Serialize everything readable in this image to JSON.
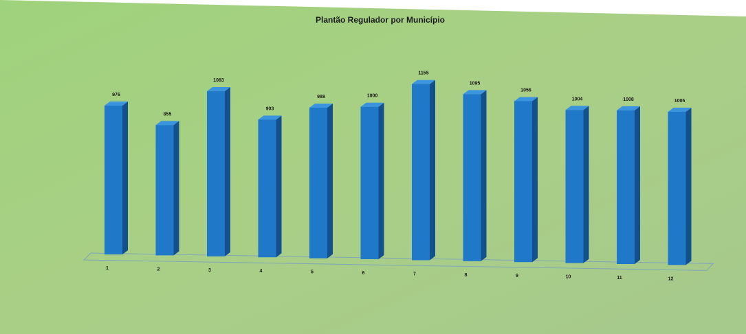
{
  "chart_data": {
    "type": "bar",
    "title": "Plantão Regulador por Município",
    "xlabel": "",
    "ylabel": "",
    "categories": [
      "1",
      "2",
      "3",
      "4",
      "5",
      "6",
      "7",
      "8",
      "9",
      "10",
      "11",
      "12"
    ],
    "values": [
      976,
      855,
      1083,
      903,
      988,
      1000,
      1155,
      1095,
      1056,
      1004,
      1008,
      1005
    ],
    "ylim": [
      0,
      1200
    ],
    "grid": false,
    "legend": "none",
    "data_labels": true,
    "style": "3d-column"
  },
  "colors": {
    "background": "#a8cc7e",
    "bar_front": "#1f78c8",
    "bar_side": "#14508c",
    "bar_top": "#3b95de",
    "floor_line": "#7fa6b8"
  }
}
